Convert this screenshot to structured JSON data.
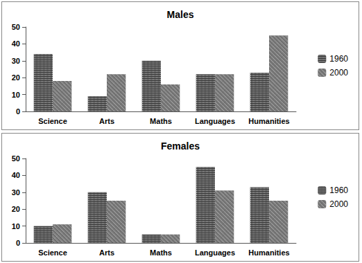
{
  "chart_data": [
    {
      "type": "bar",
      "title": "Males",
      "categories": [
        "Science",
        "Arts",
        "Maths",
        "Languages",
        "Humanities"
      ],
      "series": [
        {
          "name": "1960",
          "color": "#3a3a3a",
          "values": [
            34,
            9,
            30,
            22,
            23
          ]
        },
        {
          "name": "2000",
          "color": "#6e6e6e",
          "values": [
            18,
            22,
            16,
            22,
            45
          ]
        }
      ],
      "ylim": [
        0,
        50
      ],
      "yticks": [
        0,
        10,
        20,
        30,
        40,
        50
      ],
      "grid": false,
      "legend": "right"
    },
    {
      "type": "bar",
      "title": "Females",
      "categories": [
        "Science",
        "Arts",
        "Maths",
        "Languages",
        "Humanities"
      ],
      "series": [
        {
          "name": "1960",
          "color": "#3a3a3a",
          "values": [
            10,
            30,
            5,
            45,
            33
          ]
        },
        {
          "name": "2000",
          "color": "#6e6e6e",
          "values": [
            11,
            25,
            5,
            31,
            25
          ]
        }
      ],
      "ylim": [
        0,
        50
      ],
      "yticks": [
        0,
        10,
        20,
        30,
        40,
        50
      ],
      "grid": false,
      "legend": "right"
    }
  ]
}
